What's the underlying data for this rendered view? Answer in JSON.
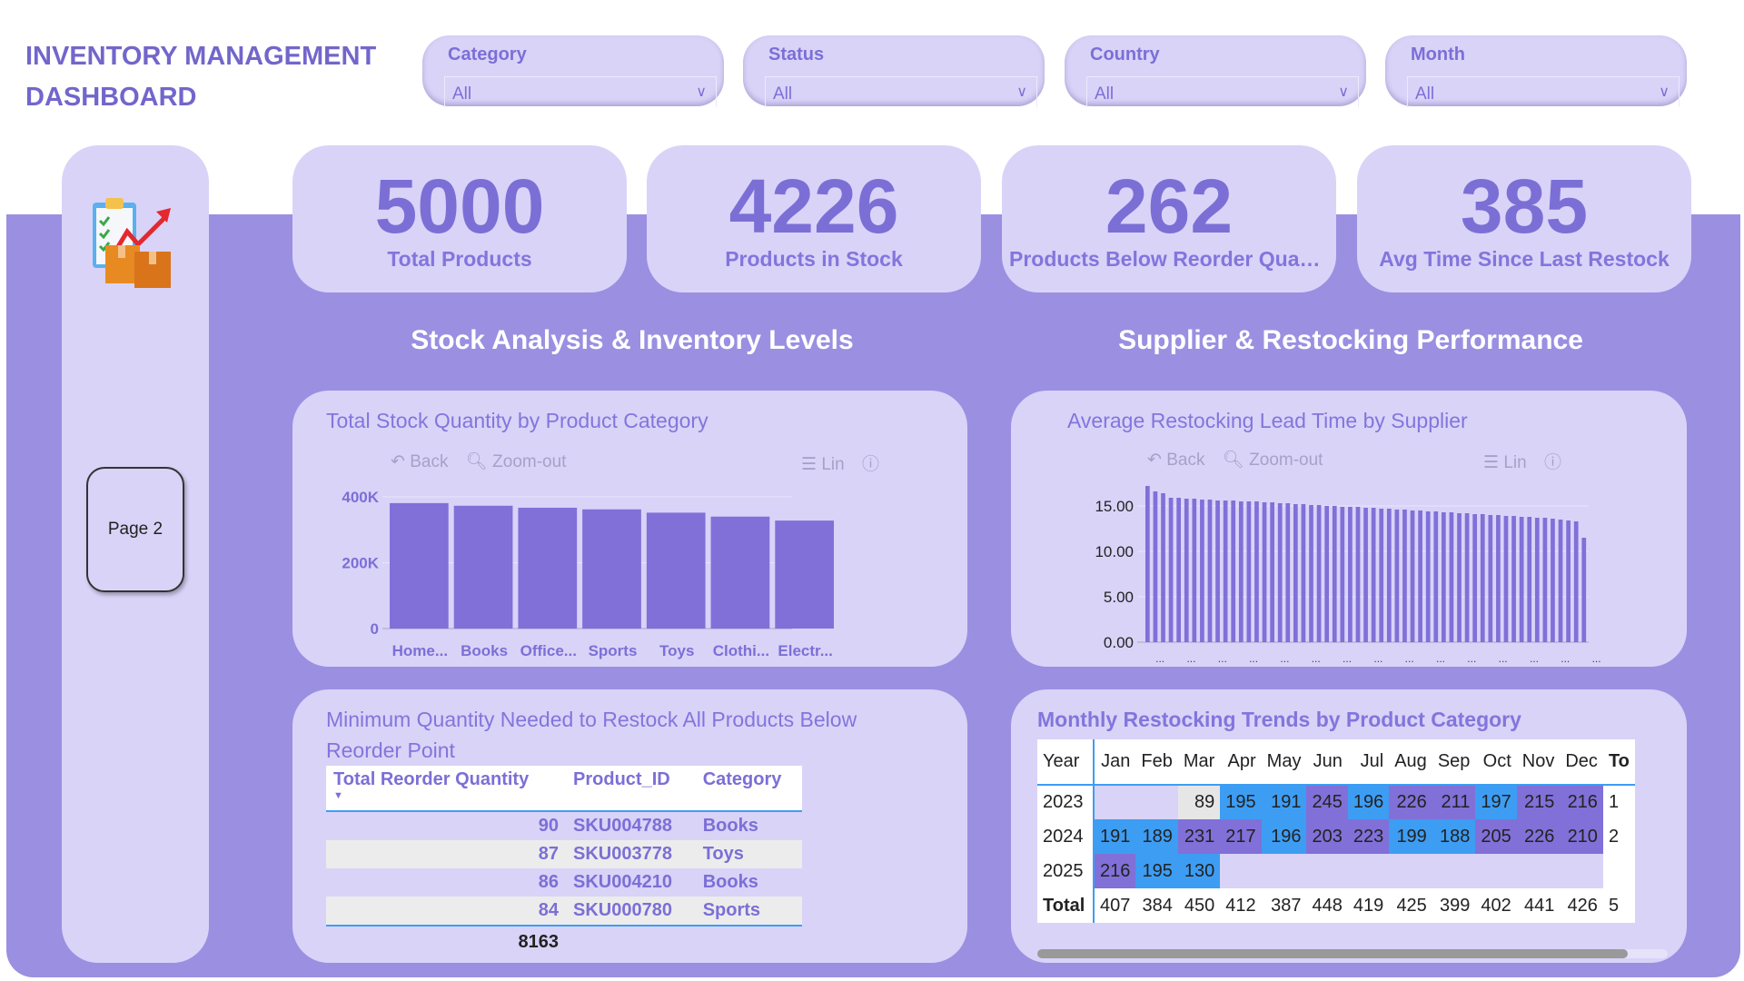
{
  "header": {
    "title_line1": "INVENTORY MANAGEMENT",
    "title_line2": "DASHBOARD"
  },
  "slicers": [
    {
      "label": "Category",
      "value": "All"
    },
    {
      "label": "Status",
      "value": "All"
    },
    {
      "label": "Country",
      "value": "All"
    },
    {
      "label": "Month",
      "value": "All"
    }
  ],
  "sidebar": {
    "page_button": "Page 2",
    "logo_icon": "inventory-clipboard-boxes-icon"
  },
  "kpis": [
    {
      "value": "5000",
      "label": "Total Products"
    },
    {
      "value": "4226",
      "label": "Products in Stock"
    },
    {
      "value": "262",
      "label": "Products Below Reorder Quantity"
    },
    {
      "value": "385",
      "label": "Avg Time Since Last Restock"
    }
  ],
  "sections": {
    "left": "Stock Analysis & Inventory Levels",
    "right": "Supplier & Restocking Performance"
  },
  "toolbar": {
    "back": "Back",
    "zoom_out": "Zoom-out",
    "lin": "Lin"
  },
  "colors": {
    "accent": "#7b6fd6",
    "band": "#9b8fe2",
    "panel": "#d9d3f8",
    "bar": "#8070d8",
    "heat_blue": "#3d9df3",
    "heat_purple": "#8070d8",
    "heat_gray": "#e6e6e6"
  },
  "chart_data": [
    {
      "type": "bar",
      "title": "Total Stock Quantity by Product Category",
      "categories": [
        "Home...",
        "Books",
        "Office...",
        "Sports",
        "Toys",
        "Clothi...",
        "Electr..."
      ],
      "values": [
        381000,
        373000,
        367000,
        362000,
        352000,
        340000,
        328000
      ],
      "yticks": [
        "0",
        "200K",
        "400K"
      ],
      "ylim": [
        0,
        400000
      ],
      "grid": true
    },
    {
      "type": "bar",
      "title": "Average Restocking Lead Time by Supplier",
      "category_label": "...",
      "values": [
        17.2,
        16.6,
        16.4,
        15.9,
        15.9,
        15.8,
        15.8,
        15.7,
        15.7,
        15.6,
        15.6,
        15.6,
        15.5,
        15.5,
        15.5,
        15.4,
        15.4,
        15.3,
        15.3,
        15.2,
        15.2,
        15.1,
        15.1,
        15.0,
        15.0,
        14.9,
        14.9,
        14.9,
        14.8,
        14.8,
        14.7,
        14.7,
        14.6,
        14.6,
        14.5,
        14.5,
        14.4,
        14.4,
        14.3,
        14.3,
        14.2,
        14.2,
        14.1,
        14.1,
        14.0,
        14.0,
        13.9,
        13.9,
        13.8,
        13.8,
        13.7,
        13.7,
        13.6,
        13.5,
        13.4,
        13.3,
        11.5
      ],
      "yticks": [
        "0.00",
        "5.00",
        "10.00",
        "15.00"
      ],
      "ylim": [
        0,
        17.5
      ],
      "grid": true
    }
  ],
  "reorder_table": {
    "title": "Minimum Quantity Needed to Restock All Products Below Reorder Point",
    "columns": [
      "Total Reorder Quantity",
      "Product_ID",
      "Category"
    ],
    "rows": [
      [
        "90",
        "SKU004788",
        "Books"
      ],
      [
        "87",
        "SKU003778",
        "Toys"
      ],
      [
        "86",
        "SKU004210",
        "Books"
      ],
      [
        "84",
        "SKU000780",
        "Sports"
      ]
    ],
    "total": "8163"
  },
  "heatmap": {
    "title": "Monthly Restocking Trends by Product Category",
    "corner": "Year",
    "months": [
      "Jan",
      "Feb",
      "Mar",
      "Apr",
      "May",
      "Jun",
      "Jul",
      "Aug",
      "Sep",
      "Oct",
      "Nov",
      "Dec",
      "To"
    ],
    "rows": [
      {
        "year": "2023",
        "cells": [
          [
            "",
            ""
          ],
          [
            "",
            ""
          ],
          [
            "89",
            "g"
          ],
          [
            "195",
            "b"
          ],
          [
            "191",
            "b"
          ],
          [
            "245",
            "p"
          ],
          [
            "196",
            "b"
          ],
          [
            "226",
            "p"
          ],
          [
            "211",
            "p"
          ],
          [
            "197",
            "b"
          ],
          [
            "215",
            "p"
          ],
          [
            "216",
            "p"
          ],
          [
            "1",
            "w"
          ]
        ]
      },
      {
        "year": "2024",
        "cells": [
          [
            "191",
            "b"
          ],
          [
            "189",
            "b"
          ],
          [
            "231",
            "p"
          ],
          [
            "217",
            "p"
          ],
          [
            "196",
            "b"
          ],
          [
            "203",
            "p"
          ],
          [
            "223",
            "p"
          ],
          [
            "199",
            "b"
          ],
          [
            "188",
            "b"
          ],
          [
            "205",
            "p"
          ],
          [
            "226",
            "p"
          ],
          [
            "210",
            "p"
          ],
          [
            "2",
            "w"
          ]
        ]
      },
      {
        "year": "2025",
        "cells": [
          [
            "216",
            "p"
          ],
          [
            "195",
            "b"
          ],
          [
            "130",
            "b"
          ],
          [
            "",
            ""
          ],
          [
            "",
            ""
          ],
          [
            "",
            ""
          ],
          [
            "",
            ""
          ],
          [
            "",
            ""
          ],
          [
            "",
            ""
          ],
          [
            "",
            ""
          ],
          [
            "",
            ""
          ],
          [
            "",
            ""
          ],
          [
            "",
            "w"
          ]
        ]
      }
    ],
    "total_label": "Total",
    "totals": [
      "407",
      "384",
      "450",
      "412",
      "387",
      "448",
      "419",
      "425",
      "399",
      "402",
      "441",
      "426",
      "5"
    ]
  }
}
